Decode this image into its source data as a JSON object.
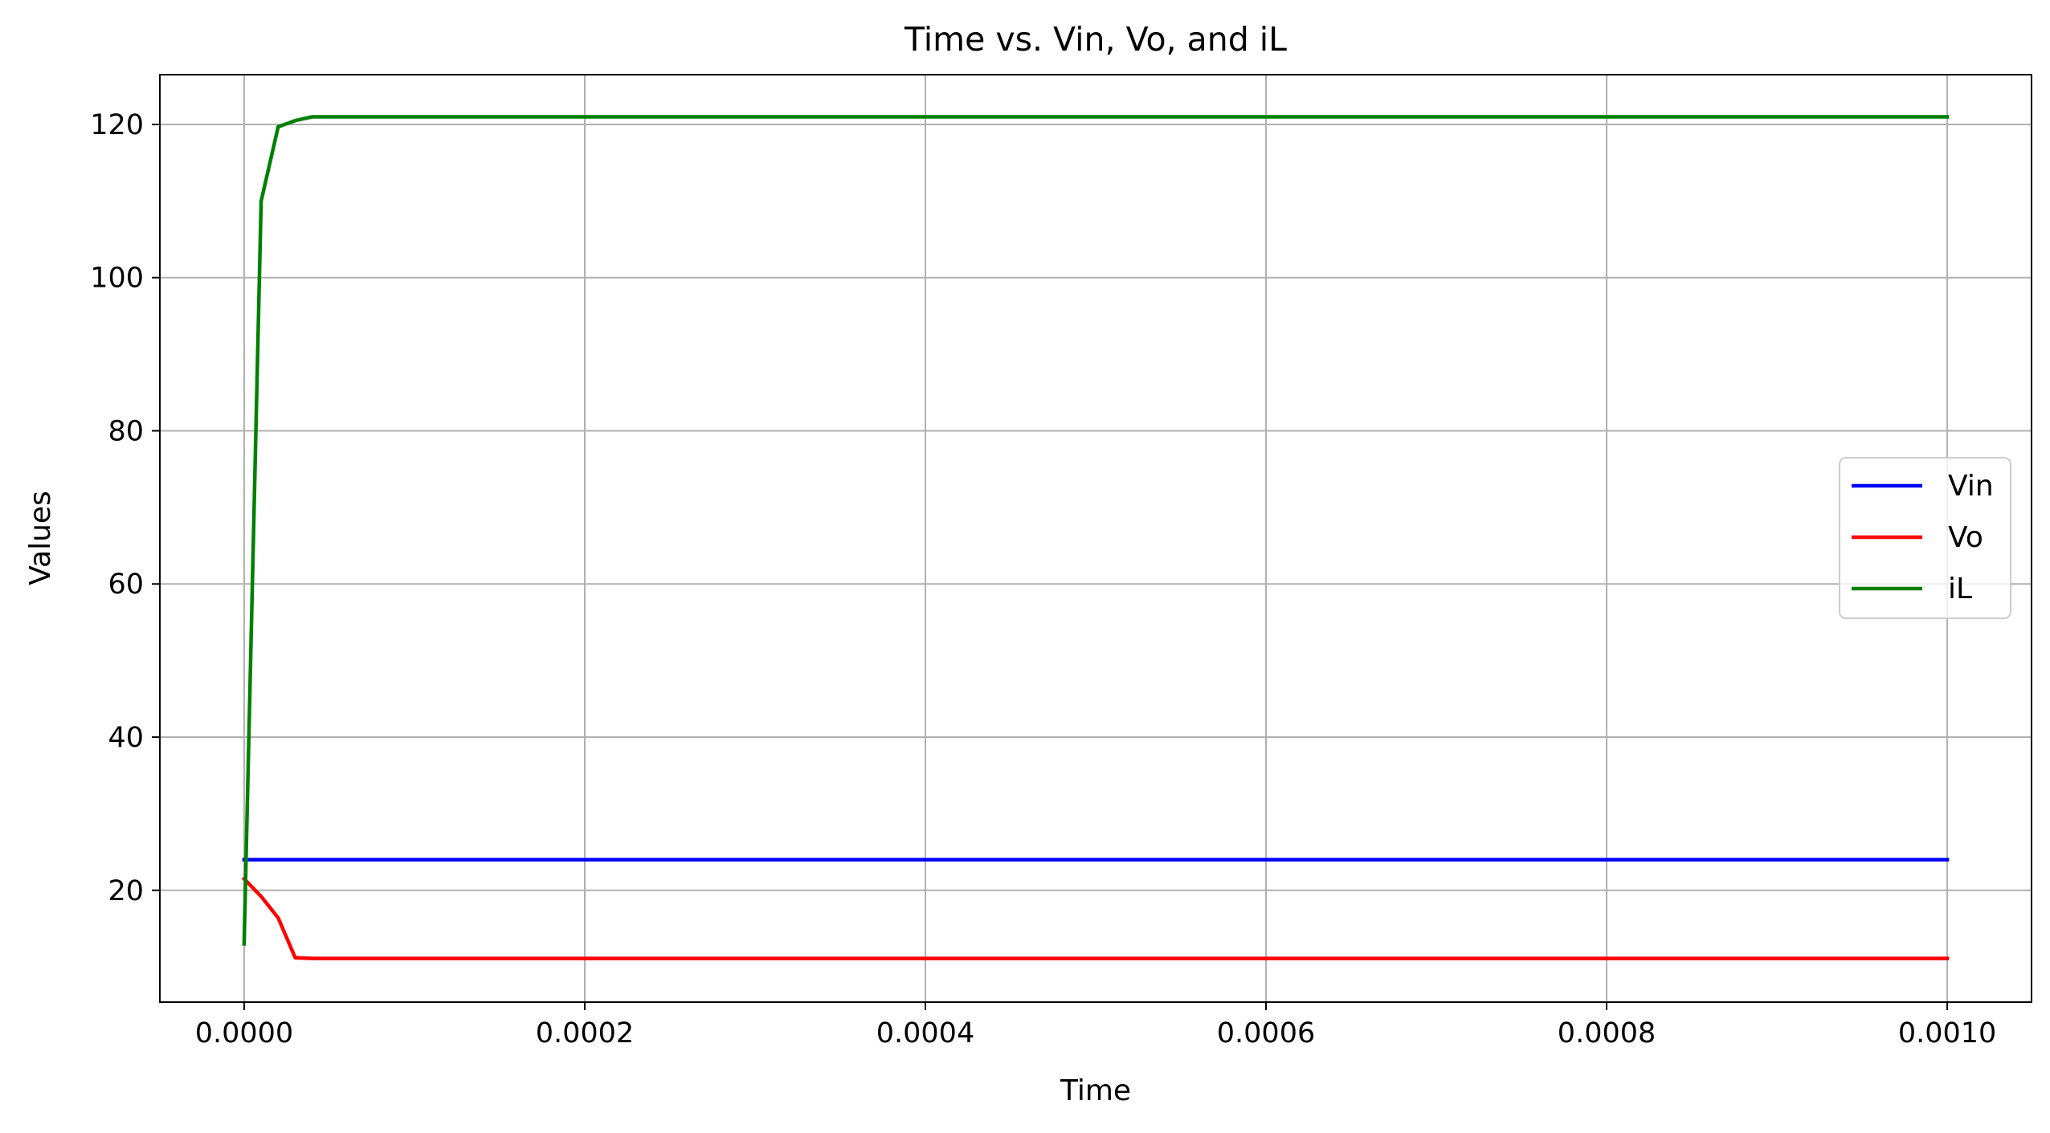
{
  "chart_data": {
    "type": "line",
    "title": "Time vs. Vin, Vo, and iL",
    "xlabel": "Time",
    "ylabel": "Values",
    "xlim": [
      -4.95e-05,
      0.0010495
    ],
    "ylim": [
      5.4,
      126.5
    ],
    "xticks": [
      0.0,
      0.0002,
      0.0004,
      0.0006,
      0.0008,
      0.001
    ],
    "xtick_labels": [
      "0.0000",
      "0.0002",
      "0.0004",
      "0.0006",
      "0.0008",
      "0.0010"
    ],
    "yticks": [
      20,
      40,
      60,
      80,
      100,
      120
    ],
    "ytick_labels": [
      "20",
      "40",
      "60",
      "80",
      "100",
      "120"
    ],
    "grid": true,
    "legend_position": "center-right",
    "series": [
      {
        "name": "Vin",
        "color": "#0000ff",
        "x": [
          0.0,
          0.001
        ],
        "y": [
          24,
          24
        ]
      },
      {
        "name": "Vo",
        "color": "#ff0000",
        "x": [
          0.0,
          1e-05,
          2e-05,
          3e-05,
          4e-05,
          5e-05,
          0.001
        ],
        "y": [
          21.5,
          19.2,
          16.4,
          11.2,
          11.1,
          11.1,
          11.1
        ]
      },
      {
        "name": "iL",
        "color": "#008000",
        "x": [
          0.0,
          1e-05,
          2e-05,
          3e-05,
          4e-05,
          5e-05,
          0.001
        ],
        "y": [
          13.0,
          110.0,
          119.7,
          120.5,
          121.0,
          121.0,
          121.0
        ]
      }
    ]
  }
}
